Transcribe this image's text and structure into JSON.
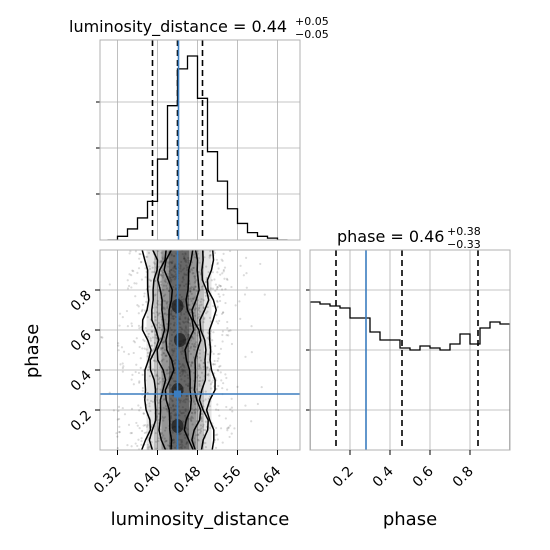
{
  "colors": {
    "truth": "#3b7dbf",
    "quantile": "#000000",
    "grid": "#b0b0b0",
    "density": "#000000"
  },
  "titles": {
    "lum_title_prefix": "luminosity_distance = 0.44",
    "lum_title_sup": "+0.05",
    "lum_title_sub": "−0.05",
    "phase_title_prefix": "phase = 0.46",
    "phase_title_sup": "+0.38",
    "phase_title_sub": "−0.33"
  },
  "axis_labels": {
    "x_left": "luminosity_distance",
    "x_right": "phase",
    "y_left": "phase"
  },
  "ticks": {
    "lum_x": [
      "0.32",
      "0.40",
      "0.48",
      "0.56",
      "0.64"
    ],
    "phase_y": [
      "0.2",
      "0.4",
      "0.6",
      "0.8"
    ],
    "phase_x": [
      "0.2",
      "0.4",
      "0.6",
      "0.8"
    ]
  },
  "chart_data": {
    "type": "corner",
    "parameters": [
      "luminosity_distance",
      "phase"
    ],
    "truths": {
      "luminosity_distance": 0.44,
      "phase": 0.28
    },
    "lum_hist": {
      "xlim": [
        0.285,
        0.685
      ],
      "edges": [
        0.3,
        0.32,
        0.34,
        0.36,
        0.38,
        0.4,
        0.42,
        0.44,
        0.46,
        0.48,
        0.5,
        0.52,
        0.54,
        0.56,
        0.58,
        0.6,
        0.62,
        0.64,
        0.66
      ],
      "counts": [
        0,
        0.02,
        0.06,
        0.12,
        0.21,
        0.44,
        0.73,
        0.93,
        1.0,
        0.77,
        0.48,
        0.32,
        0.17,
        0.09,
        0.04,
        0.02,
        0.01,
        0.0
      ],
      "quantiles": [
        0.39,
        0.44,
        0.49
      ]
    },
    "phase_hist": {
      "xlim": [
        0,
        1
      ],
      "edges": [
        0.0,
        0.05,
        0.1,
        0.15,
        0.2,
        0.25,
        0.3,
        0.35,
        0.4,
        0.45,
        0.5,
        0.55,
        0.6,
        0.65,
        0.7,
        0.75,
        0.8,
        0.85,
        0.9,
        0.95,
        1.0
      ],
      "counts": [
        0.74,
        0.73,
        0.72,
        0.71,
        0.66,
        0.66,
        0.59,
        0.55,
        0.55,
        0.51,
        0.5,
        0.52,
        0.51,
        0.5,
        0.53,
        0.58,
        0.53,
        0.61,
        0.64,
        0.63
      ],
      "quantiles": [
        0.13,
        0.46,
        0.84
      ]
    },
    "scatter_2d": {
      "xlim": [
        0.285,
        0.685
      ],
      "ylim": [
        0,
        1
      ],
      "density_ridge": [
        [
          0.0,
          0.44
        ],
        [
          0.1,
          0.44
        ],
        [
          0.2,
          0.445
        ],
        [
          0.3,
          0.44
        ],
        [
          0.4,
          0.44
        ],
        [
          0.5,
          0.44
        ],
        [
          0.6,
          0.445
        ],
        [
          0.7,
          0.445
        ],
        [
          0.8,
          0.44
        ],
        [
          0.9,
          0.44
        ],
        [
          1.0,
          0.44
        ]
      ],
      "contour_half_widths": [
        0.02,
        0.035,
        0.05,
        0.065
      ]
    }
  }
}
